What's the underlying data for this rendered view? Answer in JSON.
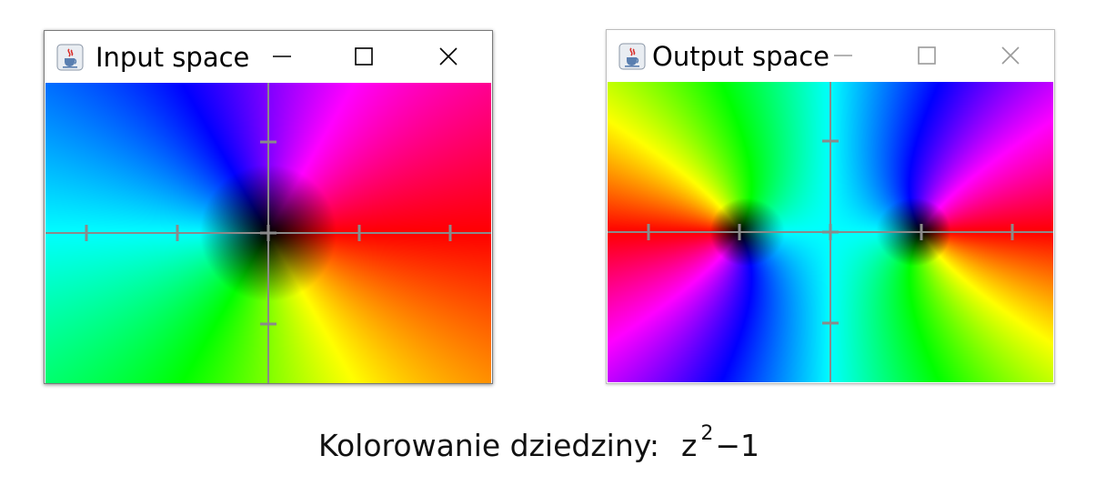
{
  "windows": [
    {
      "id": "input",
      "title": "Input space",
      "icon": "java-cup-icon",
      "controls": [
        "minimize-icon",
        "maximize-icon",
        "close-icon"
      ],
      "active": true,
      "plot": {
        "function": "identity",
        "xlim": [
          -2.45,
          2.45
        ],
        "ylim": [
          -1.65,
          1.65
        ],
        "tick_step": 1
      }
    },
    {
      "id": "output",
      "title": "Output space",
      "icon": "java-cup-icon",
      "controls": [
        "minimize-icon",
        "maximize-icon",
        "close-icon"
      ],
      "active": false,
      "plot": {
        "function": "z^2-1",
        "xlim": [
          -2.45,
          2.45
        ],
        "ylim": [
          -1.65,
          1.65
        ],
        "tick_step": 1
      }
    }
  ],
  "caption": {
    "label": "Kolorowanie dziedziny:",
    "formula_base": "z",
    "formula_exponent": "2",
    "formula_rest": "−1"
  },
  "colors": {
    "axis": "#8a8a8a",
    "inactive_control": "#9a9a9a",
    "active_control": "#000000"
  }
}
